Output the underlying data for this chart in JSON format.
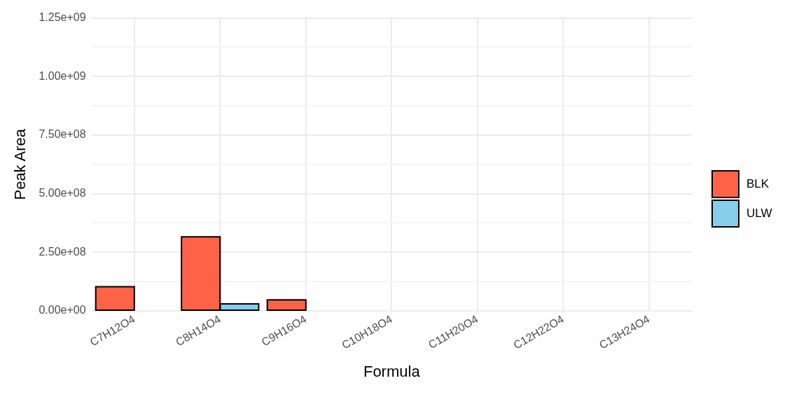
{
  "chart_data": {
    "type": "bar",
    "xlabel": "Formula",
    "ylabel": "Peak Area",
    "categories": [
      "C7H12O4",
      "C8H14O4",
      "C9H16O4",
      "C10H18O4",
      "C11H20O4",
      "C12H22O4",
      "C13H24O4"
    ],
    "series": [
      {
        "name": "BLK",
        "color": "#ff6347",
        "values": [
          103000000.0,
          316000000.0,
          47000000.0,
          null,
          null,
          null,
          null
        ]
      },
      {
        "name": "ULW",
        "color": "#87ceeb",
        "values": [
          null,
          30000000.0,
          null,
          null,
          null,
          null,
          null
        ]
      }
    ],
    "ylim": [
      0,
      1250000000.0
    ],
    "yticks": [
      {
        "value": 0,
        "label": "0.00e+00"
      },
      {
        "value": 125000000.0,
        "label": null
      },
      {
        "value": 250000000.0,
        "label": "2.50e+08"
      },
      {
        "value": 375000000.0,
        "label": null
      },
      {
        "value": 500000000.0,
        "label": "5.00e+08"
      },
      {
        "value": 625000000.0,
        "label": null
      },
      {
        "value": 750000000.0,
        "label": "7.50e+08"
      },
      {
        "value": 875000000.0,
        "label": null
      },
      {
        "value": 1000000000.0,
        "label": "1.00e+09"
      },
      {
        "value": 1125000000.0,
        "label": null
      },
      {
        "value": 1250000000.0,
        "label": "1.25e+09"
      }
    ],
    "grid": true,
    "legend": "right"
  }
}
